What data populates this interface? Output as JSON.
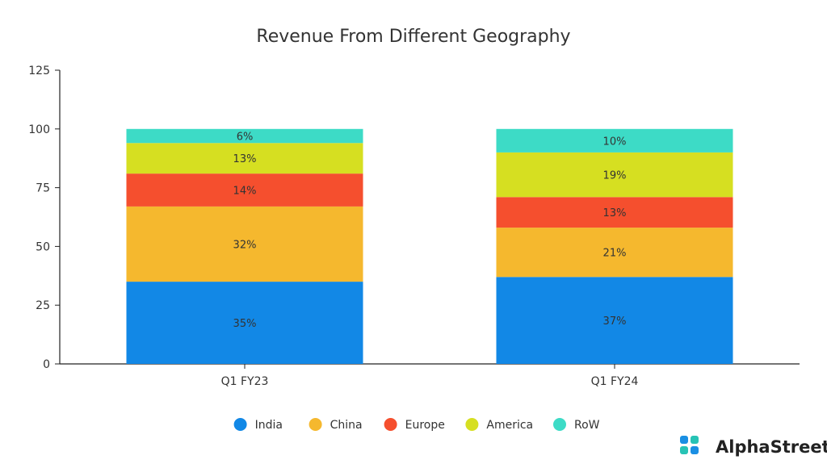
{
  "chart_data": {
    "type": "bar",
    "stacked": true,
    "title": "Revenue From Different Geography",
    "xlabel": "",
    "ylabel": "",
    "categories": [
      "Q1 FY23",
      "Q1 FY24"
    ],
    "ylim": [
      0,
      125
    ],
    "yticks": [
      0,
      25,
      50,
      75,
      100,
      125
    ],
    "grid": false,
    "legend_position": "bottom",
    "series": [
      {
        "name": "India",
        "color": "#1288e6",
        "values": [
          35,
          37
        ],
        "labels": [
          "35%",
          "37%"
        ]
      },
      {
        "name": "China",
        "color": "#f5b82e",
        "values": [
          32,
          21
        ],
        "labels": [
          "32%",
          "21%"
        ]
      },
      {
        "name": "Europe",
        "color": "#f54f2e",
        "values": [
          14,
          13
        ],
        "labels": [
          "14%",
          "13%"
        ]
      },
      {
        "name": "America",
        "color": "#d6df21",
        "values": [
          13,
          19
        ],
        "labels": [
          "13%",
          "19%"
        ]
      },
      {
        "name": "RoW",
        "color": "#3ddbc6",
        "values": [
          6,
          10
        ],
        "labels": [
          "6%",
          "10%"
        ]
      }
    ]
  },
  "brand": {
    "name": "AlphaStreet",
    "icon": "alphastreet-logo-icon",
    "colors": [
      "#1a8fe3",
      "#27c3b5"
    ]
  }
}
